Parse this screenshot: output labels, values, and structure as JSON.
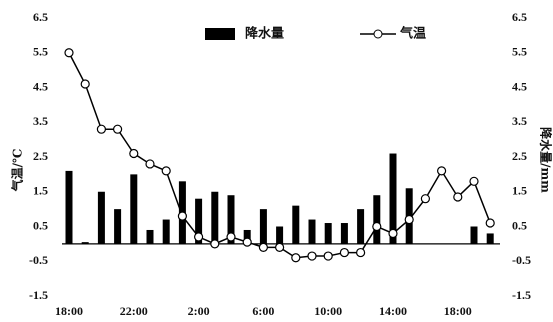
{
  "chart_data": {
    "type": "bar-line",
    "y_label": "气温/℃",
    "y2_label": "降水量/mm",
    "categories": [
      "18:00",
      null,
      null,
      null,
      "22:00",
      null,
      null,
      null,
      "2:00",
      null,
      null,
      null,
      "6:00",
      null,
      null,
      null,
      "10:00",
      null,
      null,
      null,
      "14:00",
      null,
      null,
      null,
      "18:00",
      null,
      null
    ],
    "series": [
      {
        "name": "降水量",
        "type": "bar",
        "axis": "y2",
        "color": "#000000",
        "values": [
          2.1,
          0.05,
          1.5,
          1.0,
          2.0,
          0.4,
          0.7,
          1.8,
          1.3,
          1.5,
          1.4,
          0.4,
          1.0,
          0.5,
          1.1,
          0.7,
          0.6,
          0.6,
          1.0,
          1.4,
          2.6,
          1.6,
          0,
          0,
          0,
          0.5,
          0.3
        ]
      },
      {
        "name": "气温",
        "type": "line",
        "color": "#000000",
        "values": [
          5.5,
          4.6,
          3.3,
          3.3,
          2.6,
          2.3,
          2.1,
          0.8,
          0.2,
          0.0,
          0.2,
          0.05,
          -0.1,
          -0.1,
          -0.4,
          -0.35,
          -0.35,
          -0.25,
          -0.25,
          0.5,
          0.3,
          0.7,
          1.3,
          2.1,
          1.35,
          1.8,
          0.6
        ]
      }
    ],
    "ylim": [
      -1.5,
      6.5
    ],
    "yticks": [
      -1.5,
      -0.5,
      0.5,
      1.5,
      2.5,
      3.5,
      4.5,
      5.5,
      6.5
    ],
    "y2lim": [
      -1.5,
      6.5
    ],
    "y2ticks": [
      -1.5,
      -0.5,
      0.5,
      1.5,
      2.5,
      3.5,
      4.5,
      5.5,
      6.5
    ],
    "legend": "top"
  }
}
